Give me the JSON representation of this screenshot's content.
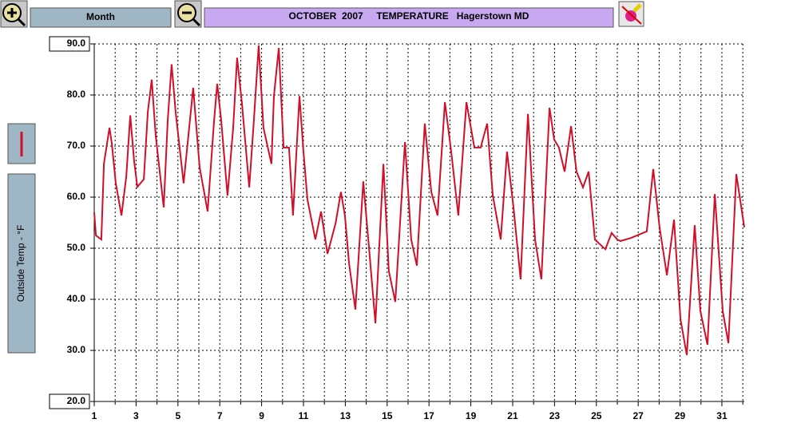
{
  "toolbar": {
    "period": "Month"
  },
  "chart_data": {
    "type": "line",
    "title": "OCTOBER  2007     TEMPERATURE   Hagerstown MD",
    "y_label": "Outside Temp - °F",
    "color": "#d0102a",
    "grid": true,
    "x": [
      1.0,
      1.08,
      1.34,
      1.46,
      1.73,
      1.84,
      2.03,
      2.3,
      2.53,
      2.72,
      2.91,
      3.06,
      3.37,
      3.56,
      3.75,
      3.94,
      4.32,
      4.51,
      4.7,
      4.89,
      5.27,
      5.54,
      5.73,
      6.04,
      6.42,
      6.73,
      6.88,
      7.07,
      7.37,
      7.64,
      7.83,
      8.06,
      8.41,
      8.63,
      8.86,
      9.09,
      9.47,
      9.59,
      9.82,
      10.05,
      10.31,
      10.5,
      10.81,
      11.0,
      11.19,
      11.57,
      11.84,
      12.15,
      12.53,
      12.79,
      12.98,
      13.18,
      13.48,
      13.86,
      14.13,
      14.44,
      14.82,
      15.08,
      15.39,
      15.85,
      16.15,
      16.42,
      16.8,
      17.11,
      17.41,
      17.76,
      18.06,
      18.4,
      18.79,
      19.17,
      19.47,
      19.78,
      20.05,
      20.43,
      20.73,
      21.04,
      21.38,
      21.73,
      22.07,
      22.37,
      22.76,
      22.98,
      23.21,
      23.48,
      23.79,
      24.05,
      24.36,
      24.63,
      24.93,
      25.43,
      25.73,
      26.0,
      26.15,
      26.65,
      27.41,
      27.72,
      28.02,
      28.37,
      28.71,
      29.02,
      29.32,
      29.7,
      29.97,
      30.31,
      30.66,
      31.04,
      31.31,
      31.69,
      32.07
    ],
    "values": [
      57,
      52.5,
      51.7,
      66.5,
      73.6,
      70.5,
      62.7,
      56.4,
      64,
      76,
      67,
      62,
      63.5,
      76.7,
      83,
      72,
      58,
      75,
      86,
      76.7,
      62.7,
      73.6,
      81.4,
      65.8,
      57.2,
      75,
      82.2,
      75,
      60.3,
      73.6,
      87.3,
      78.3,
      61.9,
      75,
      89.7,
      73.6,
      66.5,
      79.8,
      89.2,
      69.7,
      69.7,
      56.4,
      79.8,
      68.9,
      59.5,
      51.7,
      57.2,
      48.9,
      54.8,
      61,
      56.4,
      47,
      38,
      63.1,
      50.2,
      35.3,
      66.5,
      45.5,
      39.5,
      70.8,
      51.7,
      46.6,
      74.4,
      61,
      56.4,
      78.6,
      68.9,
      56.4,
      78.6,
      69.7,
      69.7,
      74.4,
      60.3,
      51.7,
      68.9,
      58,
      43.9,
      76.3,
      51.7,
      43.9,
      77.5,
      71.3,
      69.7,
      65,
      73.9,
      65,
      61.9,
      65,
      51.7,
      49.8,
      53,
      51.7,
      51.4,
      52,
      53.3,
      65.5,
      54.1,
      44.7,
      55.6,
      36.1,
      29.1,
      54.5,
      37.7,
      31.1,
      60.6,
      37.7,
      31.4,
      64.5,
      54.1
    ],
    "xlim": [
      1,
      32.07
    ],
    "xticks": [
      1,
      3,
      5,
      7,
      9,
      11,
      13,
      15,
      17,
      19,
      21,
      23,
      25,
      27,
      29,
      31
    ],
    "minor_xticks": [
      2,
      4,
      6,
      8,
      10,
      12,
      14,
      16,
      18,
      20,
      22,
      24,
      26,
      28,
      30,
      32
    ],
    "ylim": [
      20,
      90
    ],
    "yticks": [
      {
        "value": 20,
        "label": "20.0"
      },
      {
        "value": 30,
        "label": "30.0"
      },
      {
        "value": 40,
        "label": "40.0"
      },
      {
        "value": 50,
        "label": "50.0"
      },
      {
        "value": 60,
        "label": "60.0"
      },
      {
        "value": 70,
        "label": "70.0"
      },
      {
        "value": 80,
        "label": "80.0"
      },
      {
        "value": 90,
        "label": "90.0"
      }
    ]
  }
}
